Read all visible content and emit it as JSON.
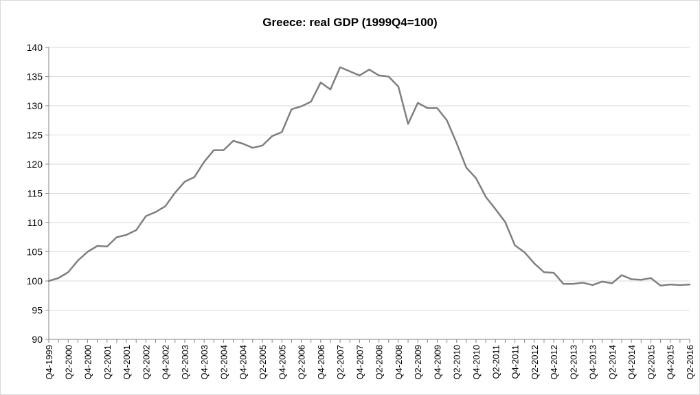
{
  "chart_data": {
    "type": "line",
    "title": "Greece: real GDP (1999Q4=100)",
    "xlabel": "",
    "ylabel": "",
    "ylim": [
      90,
      140
    ],
    "y_ticks": [
      "90",
      "95",
      "100",
      "105",
      "110",
      "115",
      "120",
      "125",
      "130",
      "135",
      "140"
    ],
    "x_tick_labels": [
      "Q4-1999",
      "Q2-2000",
      "Q4-2000",
      "Q2-2001",
      "Q4-2001",
      "Q2-2002",
      "Q4-2002",
      "Q2-2003",
      "Q4-2003",
      "Q2-2004",
      "Q4-2004",
      "Q2-2005",
      "Q4-2005",
      "Q2-2006",
      "Q4-2006",
      "Q2-2007",
      "Q4-2007",
      "Q2-2008",
      "Q4-2008",
      "Q2-2009",
      "Q4-2009",
      "Q2-2010",
      "Q4-2010",
      "Q2-2011",
      "Q4-2011",
      "Q2-2012",
      "Q4-2012",
      "Q2-2013",
      "Q4-2013",
      "Q2-2014",
      "Q4-2014",
      "Q2-2015",
      "Q4-2015",
      "Q2-2016"
    ],
    "grid": "horizontal",
    "legend": "none",
    "line_color": "#7f7f7f",
    "x": [
      "Q4-1999",
      "Q1-2000",
      "Q2-2000",
      "Q3-2000",
      "Q4-2000",
      "Q1-2001",
      "Q2-2001",
      "Q3-2001",
      "Q4-2001",
      "Q1-2002",
      "Q2-2002",
      "Q3-2002",
      "Q4-2002",
      "Q1-2003",
      "Q2-2003",
      "Q3-2003",
      "Q4-2003",
      "Q1-2004",
      "Q2-2004",
      "Q3-2004",
      "Q4-2004",
      "Q1-2005",
      "Q2-2005",
      "Q3-2005",
      "Q4-2005",
      "Q1-2006",
      "Q2-2006",
      "Q3-2006",
      "Q4-2006",
      "Q1-2007",
      "Q2-2007",
      "Q3-2007",
      "Q4-2007",
      "Q1-2008",
      "Q2-2008",
      "Q3-2008",
      "Q4-2008",
      "Q1-2009",
      "Q2-2009",
      "Q3-2009",
      "Q4-2009",
      "Q1-2010",
      "Q2-2010",
      "Q3-2010",
      "Q4-2010",
      "Q1-2011",
      "Q2-2011",
      "Q3-2011",
      "Q4-2011",
      "Q1-2012",
      "Q2-2012",
      "Q3-2012",
      "Q4-2012",
      "Q1-2013",
      "Q2-2013",
      "Q3-2013",
      "Q4-2013",
      "Q1-2014",
      "Q2-2014",
      "Q3-2014",
      "Q4-2014",
      "Q1-2015",
      "Q2-2015",
      "Q3-2015",
      "Q4-2015",
      "Q1-2016",
      "Q2-2016"
    ],
    "values": [
      100.0,
      100.5,
      101.5,
      103.5,
      105.0,
      106.0,
      105.9,
      107.5,
      107.9,
      108.7,
      111.1,
      111.8,
      112.8,
      115.1,
      117.0,
      117.8,
      120.4,
      122.4,
      122.4,
      124.0,
      123.5,
      122.8,
      123.2,
      124.8,
      125.5,
      129.4,
      129.9,
      130.7,
      134.0,
      132.8,
      136.6,
      135.9,
      135.2,
      136.2,
      135.2,
      135.0,
      133.3,
      126.9,
      130.5,
      129.6,
      129.6,
      127.5,
      123.6,
      119.4,
      117.6,
      114.4,
      112.3,
      110.1,
      106.1,
      104.9,
      103.0,
      101.5,
      101.4,
      99.5,
      99.5,
      99.7,
      99.3,
      99.9,
      99.6,
      101.0,
      100.3,
      100.2,
      100.5,
      99.2,
      99.4,
      99.3,
      99.4
    ]
  }
}
